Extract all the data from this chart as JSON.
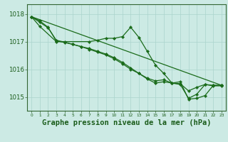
{
  "background_color": "#cceae4",
  "grid_color": "#aad4cc",
  "line_color": "#1a6b1a",
  "xlabel": "Graphe pression niveau de la mer (hPa)",
  "xlabel_fontsize": 7.5,
  "yticks": [
    1015,
    1016,
    1017,
    1018
  ],
  "xlim": [
    -0.5,
    23.5
  ],
  "ylim": [
    1014.5,
    1018.35
  ],
  "hours": [
    0,
    1,
    2,
    3,
    4,
    5,
    6,
    7,
    8,
    9,
    10,
    11,
    12,
    13,
    14,
    15,
    16,
    17,
    18,
    19,
    20,
    21,
    22,
    23
  ],
  "series1": [
    1017.9,
    1017.75,
    null,
    null,
    null,
    null,
    null,
    null,
    null,
    null,
    null,
    null,
    null,
    null,
    null,
    null,
    null,
    null,
    null,
    null,
    null,
    null,
    null,
    null
  ],
  "series2_x": [
    0,
    1,
    3,
    7,
    8,
    9,
    10,
    11,
    12,
    13,
    14,
    15,
    16,
    17,
    18,
    19,
    20,
    21,
    22,
    23
  ],
  "series2_y": [
    1017.9,
    1017.55,
    1017.0,
    1017.0,
    1017.05,
    1017.12,
    1017.12,
    1017.18,
    1017.52,
    1017.15,
    1016.65,
    1016.15,
    1015.85,
    1015.5,
    1015.55,
    1014.92,
    1014.95,
    1015.05,
    1015.42,
    1015.42
  ],
  "series3_x": [
    0,
    1,
    2,
    3,
    4,
    5,
    6,
    7,
    8,
    9,
    10,
    11,
    12,
    13,
    14,
    15,
    16,
    17,
    18,
    19,
    20,
    21,
    22,
    23
  ],
  "series3_y": [
    1017.9,
    1017.75,
    1017.52,
    1017.02,
    1016.97,
    1016.9,
    1016.82,
    1016.75,
    1016.65,
    1016.55,
    1016.42,
    1016.25,
    1016.05,
    1015.85,
    1015.68,
    1015.58,
    1015.62,
    1015.5,
    1015.48,
    1015.22,
    1015.35,
    1015.45,
    1015.42,
    1015.42
  ],
  "series4_x": [
    0,
    1,
    2,
    3,
    4,
    5,
    6,
    7,
    8,
    9,
    10,
    11,
    12,
    13,
    14,
    15,
    16,
    17,
    18,
    19,
    20,
    21,
    22,
    23
  ],
  "series4_y": [
    1017.9,
    1017.7,
    1017.5,
    1017.05,
    1016.98,
    1016.9,
    1016.82,
    1016.72,
    1016.62,
    1016.52,
    1016.38,
    1016.2,
    1016.0,
    1015.85,
    1015.65,
    1015.5,
    1015.55,
    1015.5,
    1015.45,
    1014.95,
    1015.1,
    1015.45,
    1015.4,
    1015.4
  ]
}
